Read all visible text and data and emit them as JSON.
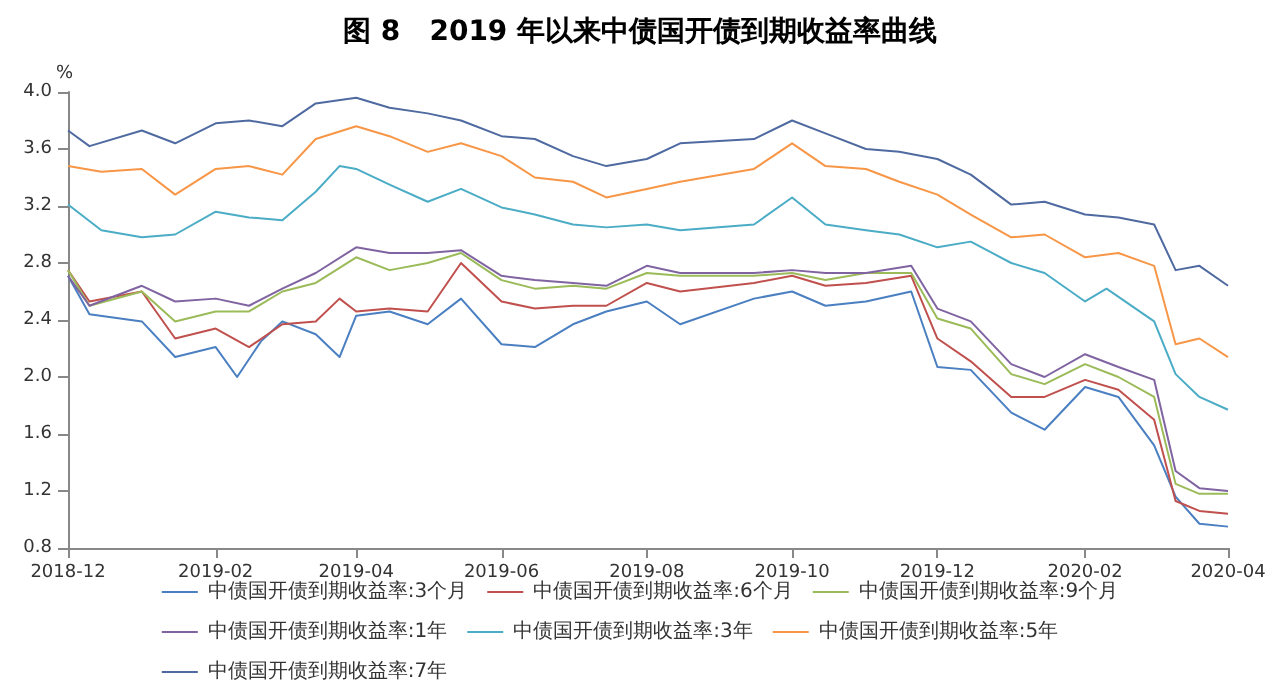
{
  "chart_data": {
    "type": "line",
    "title": "图 8   2019 年以来中债国开债到期收益率曲线",
    "ylabel": "%",
    "xlim": [
      "2018-12-01",
      "2020-04-01"
    ],
    "xticks": [
      "2018-12",
      "2019-02",
      "2019-04",
      "2019-06",
      "2019-08",
      "2019-10",
      "2019-12",
      "2020-02",
      "2020-04"
    ],
    "ylim": [
      0.8,
      4.0
    ],
    "yticks": [
      {
        "value": 0.8,
        "label": "0.8"
      },
      {
        "value": 1.2,
        "label": "1.2"
      },
      {
        "value": 1.6,
        "label": "1.6"
      },
      {
        "value": 2.0,
        "label": "2.0"
      },
      {
        "value": 2.4,
        "label": "2.4"
      },
      {
        "value": 2.8,
        "label": "2.8"
      },
      {
        "value": 3.2,
        "label": "3.2"
      },
      {
        "value": 3.6,
        "label": "3.6"
      },
      {
        "value": 4.0,
        "label": "4.0"
      }
    ],
    "grid": false,
    "legend": "bottom",
    "series": [
      {
        "name": "中债国开债到期收益率:3个月",
        "color": "#4a7fc1",
        "x": [
          "2018-12-01",
          "2018-12-10",
          "2019-01-01",
          "2019-01-15",
          "2019-02-01",
          "2019-02-10",
          "2019-02-20",
          "2019-03-01",
          "2019-03-15",
          "2019-03-25",
          "2019-04-01",
          "2019-04-15",
          "2019-05-01",
          "2019-05-15",
          "2019-06-01",
          "2019-06-15",
          "2019-07-01",
          "2019-07-15",
          "2019-08-01",
          "2019-08-15",
          "2019-09-15",
          "2019-10-01",
          "2019-10-15",
          "2019-11-01",
          "2019-11-20",
          "2019-12-01",
          "2019-12-15",
          "2020-01-01",
          "2020-01-15",
          "2020-02-01",
          "2020-02-15",
          "2020-03-01",
          "2020-03-10",
          "2020-03-20",
          "2020-04-01"
        ],
        "values": [
          2.71,
          2.44,
          2.39,
          2.14,
          2.21,
          2.0,
          2.25,
          2.39,
          2.3,
          2.14,
          2.43,
          2.46,
          2.37,
          2.55,
          2.23,
          2.21,
          2.37,
          2.46,
          2.53,
          2.37,
          2.55,
          2.6,
          2.5,
          2.53,
          2.6,
          2.07,
          2.05,
          1.75,
          1.63,
          1.93,
          1.86,
          1.52,
          1.16,
          0.97,
          0.95
        ]
      },
      {
        "name": "中债国开债到期收益率:6个月",
        "color": "#c0504d",
        "x": [
          "2018-12-01",
          "2018-12-10",
          "2019-01-01",
          "2019-01-15",
          "2019-02-01",
          "2019-02-15",
          "2019-03-01",
          "2019-03-15",
          "2019-03-25",
          "2019-04-01",
          "2019-04-15",
          "2019-05-01",
          "2019-05-15",
          "2019-06-01",
          "2019-06-15",
          "2019-07-01",
          "2019-07-15",
          "2019-08-01",
          "2019-08-15",
          "2019-09-15",
          "2019-10-01",
          "2019-10-15",
          "2019-11-01",
          "2019-11-20",
          "2019-12-01",
          "2019-12-15",
          "2020-01-01",
          "2020-01-15",
          "2020-02-01",
          "2020-02-15",
          "2020-03-01",
          "2020-03-10",
          "2020-03-20",
          "2020-04-01"
        ],
        "values": [
          2.75,
          2.53,
          2.6,
          2.27,
          2.34,
          2.21,
          2.37,
          2.39,
          2.55,
          2.46,
          2.48,
          2.46,
          2.8,
          2.53,
          2.48,
          2.5,
          2.5,
          2.66,
          2.6,
          2.66,
          2.71,
          2.64,
          2.66,
          2.71,
          2.27,
          2.11,
          1.86,
          1.86,
          1.98,
          1.91,
          1.7,
          1.13,
          1.06,
          1.04
        ]
      },
      {
        "name": "中债国开债到期收益率:9个月",
        "color": "#9bbb59",
        "x": [
          "2018-12-01",
          "2018-12-10",
          "2019-01-01",
          "2019-01-15",
          "2019-02-01",
          "2019-02-15",
          "2019-03-01",
          "2019-03-15",
          "2019-04-01",
          "2019-04-15",
          "2019-05-01",
          "2019-05-15",
          "2019-06-01",
          "2019-06-15",
          "2019-07-01",
          "2019-07-15",
          "2019-08-01",
          "2019-08-15",
          "2019-09-15",
          "2019-10-01",
          "2019-10-15",
          "2019-11-01",
          "2019-11-20",
          "2019-12-01",
          "2019-12-15",
          "2020-01-01",
          "2020-01-15",
          "2020-02-01",
          "2020-02-15",
          "2020-03-01",
          "2020-03-10",
          "2020-03-20",
          "2020-04-01"
        ],
        "values": [
          2.75,
          2.5,
          2.6,
          2.39,
          2.46,
          2.46,
          2.6,
          2.66,
          2.84,
          2.75,
          2.8,
          2.87,
          2.68,
          2.62,
          2.64,
          2.62,
          2.73,
          2.71,
          2.71,
          2.73,
          2.68,
          2.73,
          2.73,
          2.41,
          2.34,
          2.02,
          1.95,
          2.09,
          2.0,
          1.86,
          1.25,
          1.18,
          1.18
        ]
      },
      {
        "name": "中债国开债到期收益率:1年",
        "color": "#8064a2",
        "x": [
          "2018-12-01",
          "2018-12-10",
          "2019-01-01",
          "2019-01-15",
          "2019-02-01",
          "2019-02-15",
          "2019-03-01",
          "2019-03-15",
          "2019-04-01",
          "2019-04-15",
          "2019-05-01",
          "2019-05-15",
          "2019-06-01",
          "2019-06-15",
          "2019-07-01",
          "2019-07-15",
          "2019-08-01",
          "2019-08-15",
          "2019-09-15",
          "2019-10-01",
          "2019-10-15",
          "2019-11-01",
          "2019-11-20",
          "2019-12-01",
          "2019-12-15",
          "2020-01-01",
          "2020-01-15",
          "2020-02-01",
          "2020-02-15",
          "2020-03-01",
          "2020-03-10",
          "2020-03-20",
          "2020-04-01"
        ],
        "values": [
          2.71,
          2.5,
          2.64,
          2.53,
          2.55,
          2.5,
          2.62,
          2.73,
          2.91,
          2.87,
          2.87,
          2.89,
          2.71,
          2.68,
          2.66,
          2.64,
          2.78,
          2.73,
          2.73,
          2.75,
          2.73,
          2.73,
          2.78,
          2.48,
          2.39,
          2.09,
          2.0,
          2.16,
          2.07,
          1.98,
          1.34,
          1.22,
          1.2
        ]
      },
      {
        "name": "中债国开债到期收益率:3年",
        "color": "#4bacc6",
        "x": [
          "2018-12-01",
          "2018-12-15",
          "2019-01-01",
          "2019-01-15",
          "2019-02-01",
          "2019-02-15",
          "2019-03-01",
          "2019-03-15",
          "2019-03-25",
          "2019-04-01",
          "2019-04-15",
          "2019-05-01",
          "2019-05-15",
          "2019-06-01",
          "2019-06-15",
          "2019-07-01",
          "2019-07-15",
          "2019-08-01",
          "2019-08-15",
          "2019-09-15",
          "2019-10-01",
          "2019-10-15",
          "2019-11-01",
          "2019-11-15",
          "2019-12-01",
          "2019-12-15",
          "2020-01-01",
          "2020-01-15",
          "2020-02-01",
          "2020-02-10",
          "2020-03-01",
          "2020-03-10",
          "2020-03-20",
          "2020-04-01"
        ],
        "values": [
          3.21,
          3.03,
          2.98,
          3.0,
          3.16,
          3.12,
          3.1,
          3.3,
          3.48,
          3.46,
          3.35,
          3.23,
          3.32,
          3.19,
          3.14,
          3.07,
          3.05,
          3.07,
          3.03,
          3.07,
          3.26,
          3.07,
          3.03,
          3.0,
          2.91,
          2.95,
          2.8,
          2.73,
          2.53,
          2.62,
          2.39,
          2.02,
          1.86,
          1.77
        ]
      },
      {
        "name": "中债国开债到期收益率:5年",
        "color": "#f79646",
        "x": [
          "2018-12-01",
          "2018-12-15",
          "2019-01-01",
          "2019-01-15",
          "2019-02-01",
          "2019-02-15",
          "2019-03-01",
          "2019-03-15",
          "2019-04-01",
          "2019-04-15",
          "2019-05-01",
          "2019-05-15",
          "2019-06-01",
          "2019-06-15",
          "2019-07-01",
          "2019-07-15",
          "2019-08-01",
          "2019-08-15",
          "2019-09-01",
          "2019-09-15",
          "2019-10-01",
          "2019-10-15",
          "2019-11-01",
          "2019-11-15",
          "2019-12-01",
          "2019-12-15",
          "2020-01-01",
          "2020-01-15",
          "2020-02-01",
          "2020-02-15",
          "2020-03-01",
          "2020-03-10",
          "2020-03-20",
          "2020-04-01"
        ],
        "values": [
          3.48,
          3.44,
          3.46,
          3.28,
          3.46,
          3.48,
          3.42,
          3.67,
          3.76,
          3.69,
          3.58,
          3.64,
          3.55,
          3.4,
          3.37,
          3.26,
          3.32,
          3.37,
          3.42,
          3.46,
          3.64,
          3.48,
          3.46,
          3.37,
          3.28,
          3.14,
          2.98,
          3.0,
          2.84,
          2.87,
          2.78,
          2.23,
          2.27,
          2.14
        ]
      },
      {
        "name": "中债国开债到期收益率:7年",
        "color": "#4f6aa0",
        "x": [
          "2018-12-01",
          "2018-12-10",
          "2019-01-01",
          "2019-01-15",
          "2019-02-01",
          "2019-02-15",
          "2019-03-01",
          "2019-03-15",
          "2019-04-01",
          "2019-04-15",
          "2019-05-01",
          "2019-05-15",
          "2019-06-01",
          "2019-06-15",
          "2019-07-01",
          "2019-07-15",
          "2019-08-01",
          "2019-08-15",
          "2019-09-15",
          "2019-10-01",
          "2019-10-15",
          "2019-11-01",
          "2019-11-15",
          "2019-12-01",
          "2019-12-15",
          "2020-01-01",
          "2020-01-15",
          "2020-02-01",
          "2020-02-15",
          "2020-03-01",
          "2020-03-10",
          "2020-03-20",
          "2020-04-01"
        ],
        "values": [
          3.73,
          3.62,
          3.73,
          3.64,
          3.78,
          3.8,
          3.76,
          3.92,
          3.96,
          3.89,
          3.85,
          3.8,
          3.69,
          3.67,
          3.55,
          3.48,
          3.53,
          3.64,
          3.67,
          3.8,
          3.71,
          3.6,
          3.58,
          3.53,
          3.42,
          3.21,
          3.23,
          3.14,
          3.12,
          3.07,
          2.75,
          2.78,
          2.64
        ]
      }
    ]
  }
}
